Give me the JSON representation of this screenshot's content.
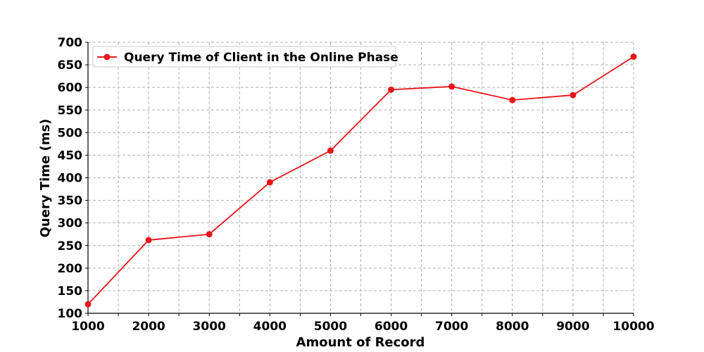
{
  "chart_data": {
    "type": "line",
    "x": [
      1000,
      2000,
      3000,
      4000,
      5000,
      6000,
      7000,
      8000,
      9000,
      10000
    ],
    "series": [
      {
        "name": "Query Time of Client in the Online Phase",
        "values": [
          120,
          262,
          275,
          390,
          460,
          595,
          602,
          572,
          583,
          668
        ],
        "color": "#e8161b",
        "marker": "circle"
      }
    ],
    "xlabel": "Amount of Record",
    "ylabel": "Query Time (ms)",
    "xlim": [
      1000,
      10000
    ],
    "ylim": [
      100,
      700
    ],
    "xticks": [
      "1000",
      "2000",
      "3000",
      "4000",
      "5000",
      "6000",
      "7000",
      "8000",
      "9000",
      "10000"
    ],
    "yticks": [
      "100",
      "150",
      "200",
      "250",
      "300",
      "350",
      "400",
      "450",
      "500",
      "550",
      "600",
      "650",
      "700"
    ],
    "x_grid_step": 500,
    "grid": true,
    "grid_style": "dashed",
    "legend_position": "top-left"
  }
}
